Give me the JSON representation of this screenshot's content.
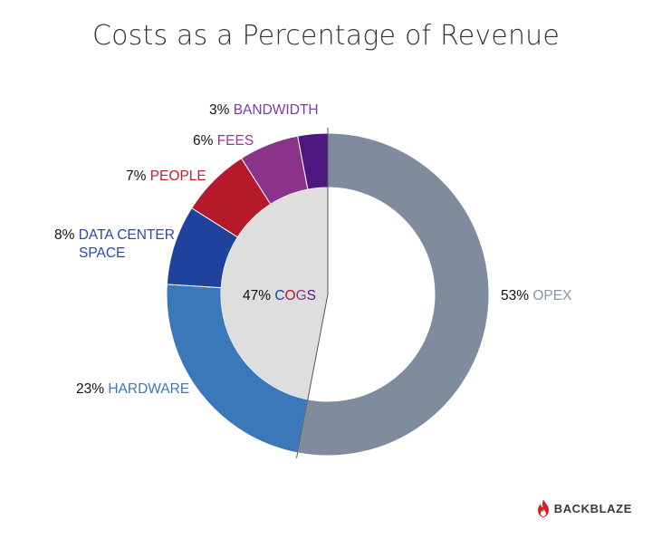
{
  "chart_data": {
    "type": "pie",
    "title": "Costs as a Percentage of Revenue",
    "slices": [
      {
        "name": "OPEX",
        "pct_label": "53%",
        "value": 53,
        "color": "#7f8c9e"
      },
      {
        "name": "HARDWARE",
        "pct_label": "23%",
        "value": 23,
        "color": "#3a78ba"
      },
      {
        "name": "DATA CENTER",
        "name_line2": "SPACE",
        "pct_label": "8%",
        "value": 8,
        "color": "#1f439c"
      },
      {
        "name": "PEOPLE",
        "pct_label": "7%",
        "value": 7,
        "color": "#b5192a"
      },
      {
        "name": "FEES",
        "pct_label": "6%",
        "value": 6,
        "color": "#8a3388"
      },
      {
        "name": "BANDWIDTH",
        "pct_label": "3%",
        "value": 3,
        "color": "#4e1780"
      }
    ],
    "inner": {
      "name": "COGS",
      "pct_label": "47%",
      "value": 47,
      "color": "#dedede"
    },
    "label_colors": {
      "OPEX": "#8a95a6",
      "HARDWARE": "#3a78ba",
      "DATA CENTER": "#2a4aa6",
      "PEOPLE": "#c0202f",
      "FEES": "#96399a",
      "BANDWIDTH": "#7a3ab0"
    }
  },
  "brand": {
    "name": "BACKBLAZE",
    "icon": "flame-icon",
    "color": "#d2232a"
  }
}
